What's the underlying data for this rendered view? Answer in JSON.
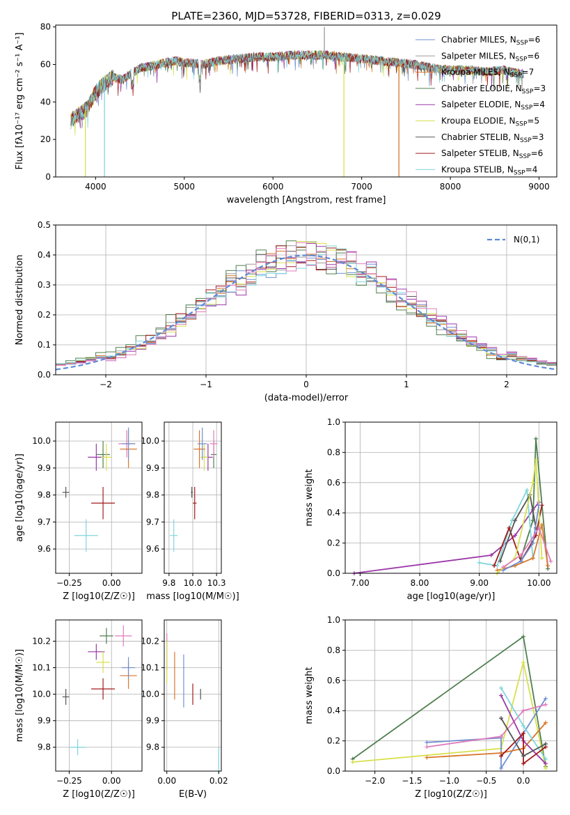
{
  "chart_data": [
    {
      "type": "line",
      "title": "PLATE=2360, MJD=53728, FIBERID=0313, z=0.029",
      "xlabel": "wavelength [Angstrom, rest frame]",
      "ylabel": "Flux [fλ10⁻¹⁷ erg cm⁻² s⁻¹ A⁻¹]",
      "xlim": [
        3550,
        9200
      ],
      "ylim": [
        0,
        81
      ],
      "xticks": [
        4000,
        5000,
        6000,
        7000,
        8000,
        9000
      ],
      "yticks": [
        0,
        20,
        40,
        60,
        80
      ],
      "legend_position": "top-right",
      "series": [
        {
          "name": "Chabrier MILES, N_SSP=6",
          "color": "#6f8fd0"
        },
        {
          "name": "Salpeter MILES, N_SSP=6",
          "color": "#9a9a9a"
        },
        {
          "name": "Kroupa MILES, N_SSP=7",
          "color": "#d9762b"
        },
        {
          "name": "Chabrier ELODIE, N_SSP=3",
          "color": "#4f7f4f"
        },
        {
          "name": "Salpeter ELODIE, N_SSP=4",
          "color": "#9b37a8"
        },
        {
          "name": "Kroupa ELODIE, N_SSP=5",
          "color": "#d7e04c"
        },
        {
          "name": "Chabrier STELIB, N_SSP=3",
          "color": "#555555"
        },
        {
          "name": "Salpeter STELIB, N_SSP=6",
          "color": "#a21a1a"
        },
        {
          "name": "Kroupa STELIB, N_SSP=4",
          "color": "#7fd6dc"
        }
      ],
      "continuum": [
        [
          3720,
          30
        ],
        [
          3800,
          33
        ],
        [
          3900,
          36
        ],
        [
          4000,
          45
        ],
        [
          4100,
          50
        ],
        [
          4200,
          53
        ],
        [
          4300,
          52
        ],
        [
          4400,
          55
        ],
        [
          4500,
          58
        ],
        [
          4700,
          60
        ],
        [
          4900,
          62
        ],
        [
          5000,
          61
        ],
        [
          5200,
          60
        ],
        [
          5400,
          62
        ],
        [
          5600,
          63
        ],
        [
          5800,
          64
        ],
        [
          6000,
          64
        ],
        [
          6200,
          65
        ],
        [
          6400,
          65
        ],
        [
          6600,
          65
        ],
        [
          6800,
          64
        ],
        [
          7000,
          63
        ],
        [
          7200,
          62
        ],
        [
          7400,
          61
        ],
        [
          7600,
          60
        ],
        [
          7800,
          58
        ],
        [
          8000,
          57
        ],
        [
          8200,
          57
        ],
        [
          8400,
          56
        ],
        [
          8600,
          57
        ],
        [
          8800,
          55
        ]
      ],
      "spikes": [
        {
          "x": 3885,
          "y_min": 0,
          "color": "#d7e04c"
        },
        {
          "x": 4100,
          "y_min": 0,
          "color": "#7fd6dc"
        },
        {
          "x": 6800,
          "y_min": 0,
          "color": "#d7e04c"
        },
        {
          "x": 7420,
          "y_min": 0,
          "color": "#d9762b"
        },
        {
          "x": 6580,
          "y_max": 80,
          "color": "#9a9a9a"
        }
      ]
    },
    {
      "type": "line",
      "xlabel": "(data-model)/error",
      "ylabel": "Normed distribution",
      "xlim": [
        -2.5,
        2.5
      ],
      "ylim": [
        0,
        0.5
      ],
      "xticks": [
        -2,
        -1,
        0,
        1,
        2
      ],
      "yticks": [
        0.0,
        0.1,
        0.2,
        0.3,
        0.4,
        0.5
      ],
      "legend": [
        "N(0,1)"
      ],
      "legend_position": "top-right",
      "gaussian": {
        "mean": 0,
        "sigma": 1,
        "color": "#5b8bd8"
      },
      "bin_width": 0.1
    },
    {
      "type": "scatter",
      "xlabel": "Z [log10(Z/Z☉)]",
      "ylabel": "age  [log10(age/yr)]",
      "xlim": [
        -0.33,
        0.18
      ],
      "ylim": [
        9.51,
        10.07
      ],
      "xticks": [
        -0.25,
        0.0
      ],
      "yticks": [
        9.6,
        9.7,
        9.8,
        9.9,
        10.0
      ],
      "points": [
        {
          "x": -0.27,
          "y": 9.81,
          "xerr": 0.02,
          "yerr": 0.02,
          "color": "#555555"
        },
        {
          "x": -0.15,
          "y": 9.65,
          "xerr": 0.07,
          "yerr": 0.06,
          "color": "#7fd6dc"
        },
        {
          "x": -0.05,
          "y": 9.77,
          "xerr": 0.07,
          "yerr": 0.06,
          "color": "#a21a1a"
        },
        {
          "x": -0.09,
          "y": 9.94,
          "xerr": 0.05,
          "yerr": 0.05,
          "color": "#9b37a8"
        },
        {
          "x": -0.05,
          "y": 9.95,
          "xerr": 0.04,
          "yerr": 0.05,
          "color": "#4f7f4f"
        },
        {
          "x": -0.03,
          "y": 9.94,
          "xerr": 0.03,
          "yerr": 0.05,
          "color": "#d7e04c"
        },
        {
          "x": 0.09,
          "y": 9.99,
          "xerr": 0.05,
          "yerr": 0.05,
          "color": "#e07cbc"
        },
        {
          "x": 0.1,
          "y": 9.97,
          "xerr": 0.05,
          "yerr": 0.07,
          "color": "#d9762b"
        },
        {
          "x": 0.1,
          "y": 9.99,
          "xerr": 0.04,
          "yerr": 0.06,
          "color": "#6f8fd0"
        }
      ]
    },
    {
      "type": "scatter",
      "xlabel": "mass [log10(M/M☉)]",
      "xlim": [
        9.7,
        10.3
      ],
      "ylim": [
        9.51,
        10.07
      ],
      "xticks": [
        9.75,
        10.0,
        10.25
      ],
      "yticks": [
        9.6,
        9.7,
        9.8,
        9.9,
        10.0
      ],
      "points": [
        {
          "x": 9.99,
          "y": 9.81,
          "xerr": 0.01,
          "yerr": 0.02,
          "color": "#555555"
        },
        {
          "x": 9.8,
          "y": 9.65,
          "xerr": 0.04,
          "yerr": 0.06,
          "color": "#7fd6dc"
        },
        {
          "x": 10.02,
          "y": 9.77,
          "xerr": 0.02,
          "yerr": 0.06,
          "color": "#a21a1a"
        },
        {
          "x": 10.16,
          "y": 9.94,
          "xerr": 0.05,
          "yerr": 0.05,
          "color": "#9b37a8"
        },
        {
          "x": 10.22,
          "y": 9.95,
          "xerr": 0.03,
          "yerr": 0.05,
          "color": "#4f7f4f"
        },
        {
          "x": 10.12,
          "y": 9.94,
          "xerr": 0.04,
          "yerr": 0.05,
          "color": "#d7e04c"
        },
        {
          "x": 10.22,
          "y": 9.99,
          "xerr": 0.04,
          "yerr": 0.05,
          "color": "#e07cbc"
        },
        {
          "x": 10.07,
          "y": 9.97,
          "xerr": 0.06,
          "yerr": 0.07,
          "color": "#d9762b"
        },
        {
          "x": 10.1,
          "y": 9.99,
          "xerr": 0.05,
          "yerr": 0.06,
          "color": "#6f8fd0"
        }
      ]
    },
    {
      "type": "line",
      "xlabel": "age  [log10(age/yr)]",
      "ylabel": "mass weight",
      "xlim": [
        6.75,
        10.3
      ],
      "ylim": [
        0,
        1
      ],
      "xticks": [
        7,
        8,
        9,
        10
      ],
      "yticks": [
        0.0,
        0.2,
        0.4,
        0.6,
        0.8,
        1.0
      ],
      "series": [
        {
          "color": "#9b37a8",
          "points": [
            [
              6.9,
              0.0
            ],
            [
              9.2,
              0.12
            ],
            [
              9.6,
              0.25
            ],
            [
              9.9,
              0.42
            ],
            [
              10.0,
              0.47
            ]
          ]
        },
        {
          "color": "#4f7f4f",
          "points": [
            [
              9.7,
              0.1
            ],
            [
              9.9,
              0.35
            ],
            [
              9.95,
              0.89
            ],
            [
              10.15,
              0.03
            ]
          ]
        },
        {
          "color": "#7fd6dc",
          "points": [
            [
              9.0,
              0.07
            ],
            [
              9.3,
              0.05
            ],
            [
              9.55,
              0.35
            ],
            [
              9.8,
              0.55
            ],
            [
              9.9,
              0.1
            ]
          ]
        },
        {
          "color": "#d9762b",
          "points": [
            [
              9.3,
              0.02
            ],
            [
              9.6,
              0.05
            ],
            [
              9.9,
              0.1
            ],
            [
              10.05,
              0.32
            ],
            [
              10.15,
              0.05
            ]
          ]
        },
        {
          "color": "#a21a1a",
          "points": [
            [
              9.25,
              0.05
            ],
            [
              9.5,
              0.3
            ],
            [
              9.7,
              0.08
            ],
            [
              9.95,
              0.25
            ],
            [
              10.05,
              0.45
            ]
          ]
        },
        {
          "color": "#555555",
          "points": [
            [
              9.35,
              0.08
            ],
            [
              9.6,
              0.35
            ],
            [
              9.85,
              0.52
            ],
            [
              9.95,
              0.3
            ]
          ]
        },
        {
          "color": "#d7e04c",
          "points": [
            [
              9.3,
              0.0
            ],
            [
              9.6,
              0.1
            ],
            [
              9.9,
              0.6
            ],
            [
              9.95,
              0.75
            ],
            [
              10.05,
              0.1
            ]
          ]
        },
        {
          "color": "#6f8fd0",
          "points": [
            [
              9.4,
              0.02
            ],
            [
              9.7,
              0.08
            ],
            [
              9.9,
              0.2
            ],
            [
              10.0,
              0.45
            ]
          ]
        },
        {
          "color": "#e07cbc",
          "points": [
            [
              9.4,
              0.04
            ],
            [
              9.7,
              0.12
            ],
            [
              10.0,
              0.3
            ],
            [
              10.2,
              0.08
            ]
          ]
        }
      ]
    },
    {
      "type": "scatter",
      "xlabel": "Z [log10(Z/Z☉)]",
      "ylabel": "mass [log10(M/M☉)]",
      "xlim": [
        -0.33,
        0.18
      ],
      "ylim": [
        9.71,
        10.28
      ],
      "xticks": [
        -0.25,
        0.0
      ],
      "yticks": [
        9.8,
        9.9,
        10.0,
        10.1,
        10.2
      ],
      "points": [
        {
          "x": -0.27,
          "y": 9.99,
          "xerr": 0.02,
          "yerr": 0.03,
          "color": "#555555"
        },
        {
          "x": -0.2,
          "y": 9.8,
          "xerr": 0.05,
          "yerr": 0.03,
          "color": "#7fd6dc"
        },
        {
          "x": -0.05,
          "y": 10.02,
          "xerr": 0.07,
          "yerr": 0.04,
          "color": "#a21a1a"
        },
        {
          "x": -0.09,
          "y": 10.16,
          "xerr": 0.05,
          "yerr": 0.03,
          "color": "#9b37a8"
        },
        {
          "x": -0.03,
          "y": 10.22,
          "xerr": 0.04,
          "yerr": 0.03,
          "color": "#4f7f4f"
        },
        {
          "x": -0.05,
          "y": 10.12,
          "xerr": 0.04,
          "yerr": 0.04,
          "color": "#d7e04c"
        },
        {
          "x": 0.07,
          "y": 10.22,
          "xerr": 0.05,
          "yerr": 0.04,
          "color": "#e07cbc"
        },
        {
          "x": 0.1,
          "y": 10.07,
          "xerr": 0.05,
          "yerr": 0.05,
          "color": "#d9762b"
        },
        {
          "x": 0.1,
          "y": 10.1,
          "xerr": 0.04,
          "yerr": 0.04,
          "color": "#6f8fd0"
        }
      ]
    },
    {
      "type": "scatter",
      "xlabel": "E(B-V)",
      "xlim": [
        -0.001,
        0.021
      ],
      "ylim": [
        9.71,
        10.28
      ],
      "xticks": [
        0.0,
        0.02
      ],
      "yticks": [
        9.8,
        9.9,
        10.0,
        10.1,
        10.2
      ],
      "points": [
        {
          "x": 0.0,
          "y": 10.16,
          "yerr": 0.07,
          "color": "#e07cbc"
        },
        {
          "x": 0.0,
          "y": 10.12,
          "yerr": 0.08,
          "color": "#d7e04c"
        },
        {
          "x": 0.003,
          "y": 10.07,
          "yerr": 0.09,
          "color": "#d9762b"
        },
        {
          "x": 0.0065,
          "y": 10.05,
          "yerr": 0.1,
          "color": "#6f8fd0"
        },
        {
          "x": 0.01,
          "y": 10.0,
          "yerr": 0.04,
          "color": "#a21a1a"
        },
        {
          "x": 0.013,
          "y": 10.0,
          "yerr": 0.02,
          "color": "#555555"
        },
        {
          "x": 0.02,
          "y": 9.75,
          "yerr": 0.05,
          "color": "#7fd6dc"
        }
      ]
    },
    {
      "type": "line",
      "xlabel": "Z [log10(Z/Z☉)]",
      "ylabel": "mass weight",
      "xlim": [
        -2.4,
        0.45
      ],
      "ylim": [
        0,
        1
      ],
      "xticks": [
        -2.0,
        -1.5,
        -1.0,
        -0.5,
        0.0
      ],
      "yticks": [
        0.0,
        0.2,
        0.4,
        0.6,
        0.8,
        1.0
      ],
      "series": [
        {
          "color": "#4f7f4f",
          "points": [
            [
              -2.3,
              0.08
            ],
            [
              0.0,
              0.89
            ],
            [
              0.3,
              0.03
            ]
          ]
        },
        {
          "color": "#d7e04c",
          "points": [
            [
              -2.3,
              0.06
            ],
            [
              -0.3,
              0.15
            ],
            [
              0.0,
              0.72
            ],
            [
              0.3,
              0.02
            ]
          ]
        },
        {
          "color": "#6f8fd0",
          "points": [
            [
              -1.3,
              0.19
            ],
            [
              -0.3,
              0.22
            ],
            [
              -0.3,
              0.02
            ],
            [
              0.3,
              0.48
            ]
          ]
        },
        {
          "color": "#e07cbc",
          "points": [
            [
              -1.3,
              0.16
            ],
            [
              -0.3,
              0.23
            ],
            [
              0.0,
              0.4
            ],
            [
              0.3,
              0.44
            ]
          ]
        },
        {
          "color": "#d9762b",
          "points": [
            [
              -1.3,
              0.09
            ],
            [
              -0.3,
              0.12
            ],
            [
              0.0,
              0.15
            ],
            [
              0.3,
              0.32
            ]
          ]
        },
        {
          "color": "#7fd6dc",
          "points": [
            [
              -0.3,
              0.55
            ],
            [
              0.0,
              0.3
            ],
            [
              0.3,
              0.08
            ]
          ]
        },
        {
          "color": "#9b37a8",
          "points": [
            [
              -0.3,
              0.5
            ],
            [
              0.0,
              0.2
            ],
            [
              0.3,
              0.05
            ]
          ]
        },
        {
          "color": "#a21a1a",
          "points": [
            [
              -0.3,
              0.1
            ],
            [
              0.0,
              0.25
            ],
            [
              0.0,
              0.05
            ],
            [
              0.3,
              0.16
            ]
          ]
        },
        {
          "color": "#555555",
          "points": [
            [
              -0.3,
              0.35
            ],
            [
              0.0,
              0.1
            ],
            [
              0.3,
              0.18
            ]
          ]
        }
      ]
    }
  ]
}
